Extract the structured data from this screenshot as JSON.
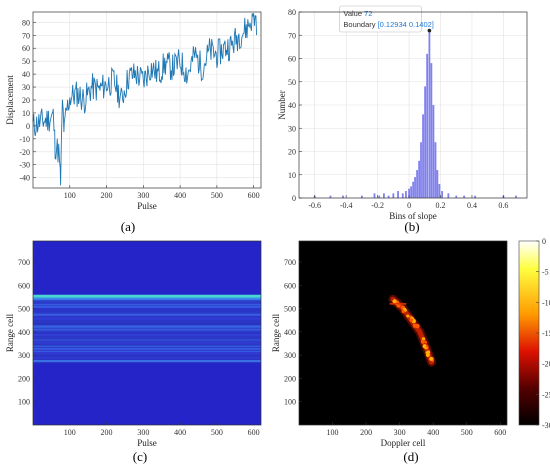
{
  "chart_data": [
    {
      "id": "a",
      "type": "line",
      "caption": "(a)",
      "xlabel": "Pulse",
      "ylabel": "Displacement",
      "xlim": [
        0,
        620
      ],
      "ylim": [
        -48,
        88
      ],
      "xticks": [
        100,
        200,
        300,
        400,
        500,
        600
      ],
      "yticks": [
        -40,
        -30,
        -20,
        -10,
        0,
        10,
        20,
        30,
        40,
        50,
        60,
        70,
        80
      ],
      "grid": true,
      "color": "#1f77b4",
      "series": [
        {
          "x": [
            0,
            20,
            40,
            55,
            60,
            70,
            75,
            80,
            85,
            90,
            100,
            120,
            140,
            160,
            180,
            200,
            220,
            240,
            260,
            280,
            300,
            320,
            340,
            360,
            380,
            400,
            420,
            440,
            460,
            480,
            500,
            520,
            540,
            560,
            580,
            600,
            610
          ],
          "y": [
            0,
            3,
            5,
            8,
            -15,
            -20,
            -45,
            18,
            -5,
            10,
            22,
            25,
            20,
            30,
            28,
            32,
            35,
            20,
            38,
            40,
            35,
            45,
            40,
            48,
            45,
            50,
            40,
            55,
            45,
            58,
            55,
            60,
            62,
            70,
            75,
            85,
            80
          ]
        }
      ]
    },
    {
      "id": "b",
      "type": "bar",
      "caption": "(b)",
      "xlabel": "Bins of slope",
      "ylabel": "Number",
      "xlim": [
        -0.7,
        0.75
      ],
      "ylim": [
        0,
        80
      ],
      "xticks": [
        -0.6,
        -0.4,
        -0.2,
        0,
        0.2,
        0.4,
        0.6
      ],
      "yticks": [
        0,
        10,
        20,
        30,
        40,
        50,
        60,
        70,
        80
      ],
      "grid": true,
      "color": "#8080ee",
      "bin_width": 0.0127,
      "bins": [
        -0.6,
        -0.5,
        -0.42,
        -0.3,
        -0.22,
        -0.19,
        -0.16,
        -0.13,
        -0.1,
        -0.07,
        -0.04,
        -0.02,
        0.0,
        0.013,
        0.026,
        0.038,
        0.051,
        0.064,
        0.076,
        0.089,
        0.102,
        0.115,
        0.1293,
        0.142,
        0.155,
        0.168,
        0.18,
        0.193,
        0.21,
        0.25,
        0.3,
        0.35,
        0.42,
        0.6,
        0.68
      ],
      "values": [
        1,
        1,
        1,
        1,
        2,
        1,
        2,
        1,
        2,
        3,
        2,
        3,
        4,
        5,
        7,
        9,
        12,
        16,
        24,
        36,
        48,
        62,
        72,
        58,
        40,
        24,
        12,
        6,
        3,
        2,
        1,
        1,
        1,
        1,
        1
      ],
      "tooltip": {
        "value_label": "Value",
        "value": "72",
        "boundary_label": "Boundary",
        "boundary": "[0.12934 0.1402]"
      }
    },
    {
      "id": "c",
      "type": "heatmap",
      "caption": "(c)",
      "xlabel": "Pulse",
      "ylabel": "Range cell",
      "xlim": [
        0,
        620
      ],
      "ylim": [
        0,
        790
      ],
      "xticks": [
        100,
        200,
        300,
        400,
        500,
        600
      ],
      "yticks": [
        100,
        200,
        300,
        400,
        500,
        600,
        700
      ],
      "colormap": "jet",
      "band": [
        270,
        555
      ]
    },
    {
      "id": "d",
      "type": "heatmap",
      "caption": "(d)",
      "xlabel": "Doppler cell",
      "ylabel": "Range cell",
      "xlim": [
        0,
        620
      ],
      "ylim": [
        0,
        790
      ],
      "xticks": [
        100,
        200,
        300,
        400,
        500,
        600
      ],
      "yticks": [
        100,
        200,
        300,
        400,
        500,
        600,
        700
      ],
      "colormap": "hot",
      "colorbar_ticks": [
        0,
        -5,
        -10,
        -15,
        -20,
        -25,
        -30
      ],
      "streak": {
        "x": [
          280,
          310,
          330,
          360,
          380,
          395
        ],
        "y": [
          540,
          500,
          460,
          400,
          330,
          270
        ]
      }
    }
  ]
}
